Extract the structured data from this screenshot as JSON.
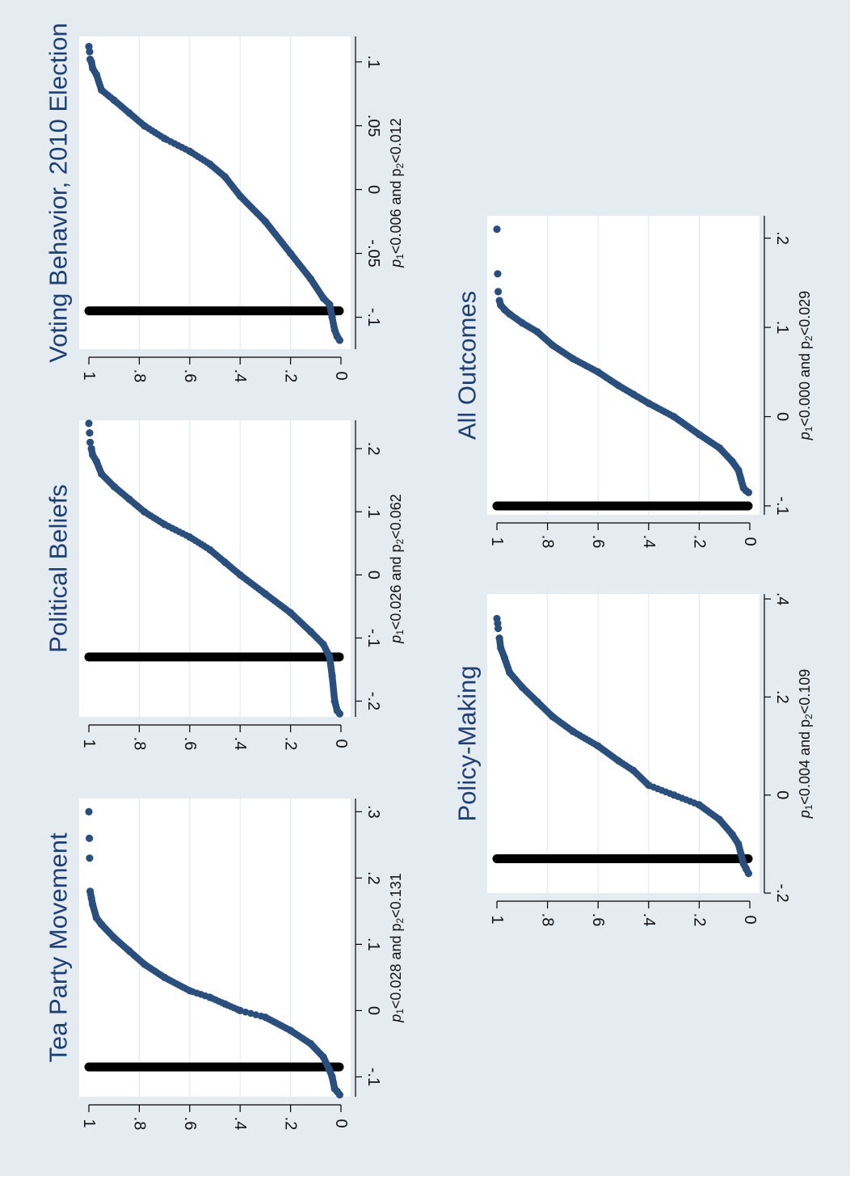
{
  "chart_data": [
    {
      "type": "scatter",
      "title": "Tea Party Movement",
      "note": {
        "p1": "<0.028",
        "p2": "<0.131",
        "joiner": "and"
      },
      "xlim": [
        -0.13,
        0.32
      ],
      "ylim": [
        0,
        1
      ],
      "xticks": [
        -0.1,
        0,
        0.1,
        0.2,
        0.3
      ],
      "xtick_labels": [
        "-.1",
        "0",
        ".1",
        ".2",
        ".3"
      ],
      "yticks": [
        0,
        0.2,
        0.4,
        0.6,
        0.8,
        1
      ],
      "ytick_labels": [
        "0",
        ".2",
        ".4",
        ".6",
        ".8",
        "1"
      ],
      "reference_x": -0.085,
      "points": [
        [
          -0.127,
          0.005
        ],
        [
          -0.122,
          0.015
        ],
        [
          -0.118,
          0.025
        ],
        [
          -0.1,
          0.035
        ],
        [
          -0.09,
          0.045
        ],
        [
          -0.07,
          0.07
        ],
        [
          -0.05,
          0.12
        ],
        [
          -0.03,
          0.2
        ],
        [
          -0.01,
          0.3
        ],
        [
          0,
          0.4
        ],
        [
          0.01,
          0.46
        ],
        [
          0.02,
          0.52
        ],
        [
          0.03,
          0.6
        ],
        [
          0.05,
          0.7
        ],
        [
          0.07,
          0.78
        ],
        [
          0.09,
          0.84
        ],
        [
          0.11,
          0.9
        ],
        [
          0.13,
          0.95
        ],
        [
          0.14,
          0.97
        ],
        [
          0.16,
          0.985
        ],
        [
          0.17,
          0.99
        ],
        [
          0.18,
          0.995
        ],
        [
          0.23,
          0.997
        ],
        [
          0.26,
          0.998
        ],
        [
          0.3,
          1.0
        ]
      ]
    },
    {
      "type": "scatter",
      "title": "Political Beliefs",
      "note": {
        "p1": "<0.026",
        "p2": "<0.062",
        "joiner": "and"
      },
      "xlim": [
        -0.225,
        0.245
      ],
      "ylim": [
        0,
        1
      ],
      "xticks": [
        -0.2,
        -0.1,
        0,
        0.1,
        0.2
      ],
      "xtick_labels": [
        "-.2",
        "-.1",
        "0",
        ".1",
        ".2"
      ],
      "yticks": [
        0,
        0.2,
        0.4,
        0.6,
        0.8,
        1
      ],
      "ytick_labels": [
        "0",
        ".2",
        ".4",
        ".6",
        ".8",
        "1"
      ],
      "reference_x": -0.13,
      "points": [
        [
          -0.22,
          0.005
        ],
        [
          -0.215,
          0.015
        ],
        [
          -0.2,
          0.025
        ],
        [
          -0.16,
          0.035
        ],
        [
          -0.13,
          0.045
        ],
        [
          -0.11,
          0.07
        ],
        [
          -0.09,
          0.12
        ],
        [
          -0.06,
          0.2
        ],
        [
          -0.03,
          0.3
        ],
        [
          0,
          0.4
        ],
        [
          0.02,
          0.46
        ],
        [
          0.04,
          0.52
        ],
        [
          0.06,
          0.6
        ],
        [
          0.08,
          0.7
        ],
        [
          0.1,
          0.78
        ],
        [
          0.12,
          0.84
        ],
        [
          0.14,
          0.9
        ],
        [
          0.16,
          0.95
        ],
        [
          0.18,
          0.97
        ],
        [
          0.19,
          0.985
        ],
        [
          0.2,
          0.99
        ],
        [
          0.21,
          0.995
        ],
        [
          0.225,
          0.997
        ],
        [
          0.24,
          1.0
        ]
      ]
    },
    {
      "type": "scatter",
      "title": "Voting Behavior, 2010 Election",
      "note": {
        "p1": "<0.006",
        "p2": "<0.012",
        "joiner": "and"
      },
      "xlim": [
        -0.125,
        0.12
      ],
      "ylim": [
        0,
        1
      ],
      "xticks": [
        -0.1,
        -0.05,
        0,
        0.05,
        0.1
      ],
      "xtick_labels": [
        "-.1",
        "-.05",
        "0",
        ".05",
        ".1"
      ],
      "yticks": [
        0,
        0.2,
        0.4,
        0.6,
        0.8,
        1
      ],
      "ytick_labels": [
        "0",
        ".2",
        ".4",
        ".6",
        ".8",
        "1"
      ],
      "reference_x": -0.095,
      "points": [
        [
          -0.118,
          0.005
        ],
        [
          -0.115,
          0.015
        ],
        [
          -0.11,
          0.025
        ],
        [
          -0.1,
          0.035
        ],
        [
          -0.09,
          0.045
        ],
        [
          -0.085,
          0.07
        ],
        [
          -0.07,
          0.12
        ],
        [
          -0.05,
          0.2
        ],
        [
          -0.025,
          0.3
        ],
        [
          -0.005,
          0.4
        ],
        [
          0.01,
          0.46
        ],
        [
          0.02,
          0.52
        ],
        [
          0.03,
          0.6
        ],
        [
          0.04,
          0.7
        ],
        [
          0.05,
          0.78
        ],
        [
          0.06,
          0.84
        ],
        [
          0.07,
          0.9
        ],
        [
          0.078,
          0.95
        ],
        [
          0.09,
          0.97
        ],
        [
          0.095,
          0.985
        ],
        [
          0.1,
          0.99
        ],
        [
          0.102,
          0.995
        ],
        [
          0.108,
          0.997
        ],
        [
          0.112,
          1.0
        ]
      ]
    },
    {
      "type": "scatter",
      "title": "Policy-Making",
      "note": {
        "p1": "<0.004",
        "p2": "<0.109",
        "joiner": "and"
      },
      "xlim": [
        -0.2,
        0.41
      ],
      "ylim": [
        0,
        1
      ],
      "xticks": [
        -0.2,
        0,
        0.2,
        0.4
      ],
      "xtick_labels": [
        "-.2",
        "0",
        ".2",
        ".4"
      ],
      "yticks": [
        0,
        0.2,
        0.4,
        0.6,
        0.8,
        1
      ],
      "ytick_labels": [
        "0",
        ".2",
        ".4",
        ".6",
        ".8",
        "1"
      ],
      "reference_x": -0.13,
      "points": [
        [
          -0.16,
          0.005
        ],
        [
          -0.15,
          0.015
        ],
        [
          -0.14,
          0.025
        ],
        [
          -0.12,
          0.035
        ],
        [
          -0.1,
          0.045
        ],
        [
          -0.08,
          0.07
        ],
        [
          -0.05,
          0.12
        ],
        [
          -0.02,
          0.2
        ],
        [
          0,
          0.3
        ],
        [
          0.02,
          0.4
        ],
        [
          0.05,
          0.46
        ],
        [
          0.07,
          0.52
        ],
        [
          0.1,
          0.6
        ],
        [
          0.13,
          0.7
        ],
        [
          0.16,
          0.78
        ],
        [
          0.19,
          0.84
        ],
        [
          0.22,
          0.9
        ],
        [
          0.25,
          0.95
        ],
        [
          0.28,
          0.97
        ],
        [
          0.3,
          0.985
        ],
        [
          0.32,
          0.99
        ],
        [
          0.34,
          0.995
        ],
        [
          0.35,
          0.997
        ],
        [
          0.36,
          1.0
        ]
      ]
    },
    {
      "type": "scatter",
      "title": "All Outcomes",
      "note": {
        "p1": "<0.000",
        "p2": "<0.029",
        "joiner": "and"
      },
      "xlim": [
        -0.11,
        0.225
      ],
      "ylim": [
        0,
        1
      ],
      "xticks": [
        -0.1,
        0,
        0.1,
        0.2
      ],
      "xtick_labels": [
        "-.1",
        "0",
        ".1",
        ".2"
      ],
      "yticks": [
        0,
        0.2,
        0.4,
        0.6,
        0.8,
        1
      ],
      "ytick_labels": [
        "0",
        ".2",
        ".4",
        ".6",
        ".8",
        "1"
      ],
      "reference_x": -0.1,
      "points": [
        [
          -0.085,
          0.005
        ],
        [
          -0.083,
          0.015
        ],
        [
          -0.08,
          0.025
        ],
        [
          -0.07,
          0.035
        ],
        [
          -0.06,
          0.045
        ],
        [
          -0.05,
          0.07
        ],
        [
          -0.035,
          0.12
        ],
        [
          -0.02,
          0.2
        ],
        [
          0,
          0.3
        ],
        [
          0.015,
          0.4
        ],
        [
          0.025,
          0.46
        ],
        [
          0.035,
          0.52
        ],
        [
          0.05,
          0.6
        ],
        [
          0.065,
          0.7
        ],
        [
          0.08,
          0.78
        ],
        [
          0.095,
          0.84
        ],
        [
          0.105,
          0.9
        ],
        [
          0.115,
          0.95
        ],
        [
          0.12,
          0.97
        ],
        [
          0.125,
          0.985
        ],
        [
          0.13,
          0.99
        ],
        [
          0.14,
          0.995
        ],
        [
          0.16,
          0.997
        ],
        [
          0.21,
          1.0
        ]
      ]
    }
  ],
  "colors": {
    "marker": "#2a4f7d",
    "reference_line": "#000000",
    "title": "#1f3f73",
    "plot_bg": "#ffffff",
    "figure_bg": "#e4ecf2",
    "grid": "#e3e9ee"
  }
}
